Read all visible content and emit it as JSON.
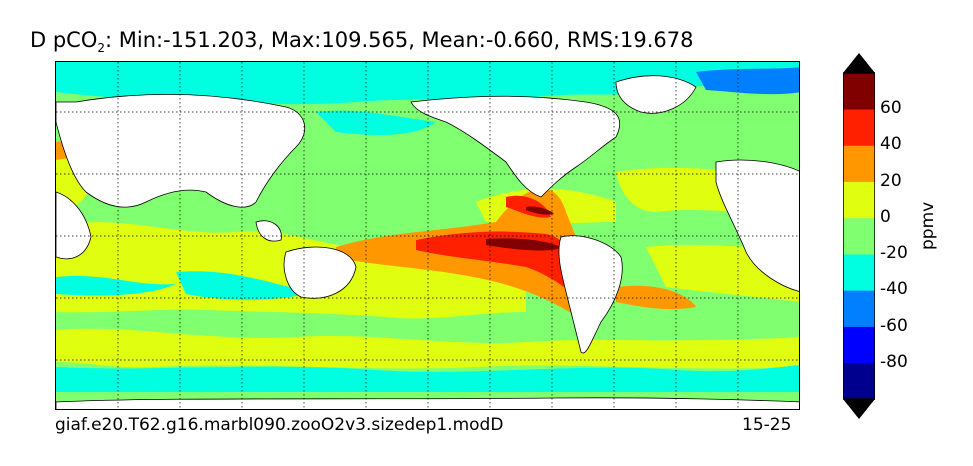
{
  "title": {
    "prefix": "D pCO",
    "subscript": "2",
    "stats": ": Min:-151.203, Max:109.565, Mean:-0.660, RMS:19.678"
  },
  "caption": {
    "case_name": "giaf.e20.T62.g16.marbl090.zooO2v3.sizedep1.modD",
    "years": "15-25"
  },
  "colorbar": {
    "label": "ppmv",
    "tick_labels": [
      "60",
      "40",
      "20",
      "0",
      "-20",
      "-40",
      "-60",
      "-80"
    ],
    "levels": [
      -100,
      -80,
      -60,
      -40,
      -20,
      0,
      20,
      40,
      60,
      80
    ],
    "colors": [
      "#00008f",
      "#0000ff",
      "#0080ff",
      "#00ffe0",
      "#80ff70",
      "#e0ff10",
      "#ff9800",
      "#ff2000",
      "#800000"
    ],
    "under_color": "#000000",
    "over_color": "#000000"
  },
  "map": {
    "projection": "cylindrical, 20E centered Pacific",
    "land_color": "#ffffff",
    "gridlines": "dotted"
  }
}
